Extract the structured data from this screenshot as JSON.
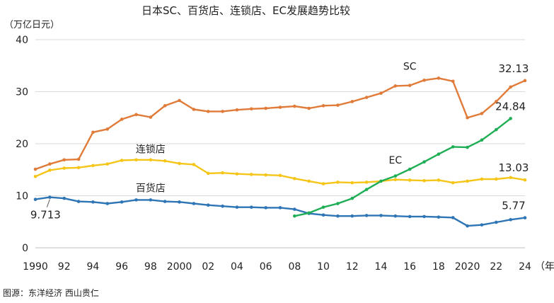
{
  "chart_data": {
    "type": "line",
    "title": "日本SC、百货店、连锁店、EC发展趋势比较",
    "ylabel": "（万亿日元）",
    "xlabel_unit": "（年）",
    "source": "图源：东洋经济  西山贵仁",
    "ylim": [
      0,
      40
    ],
    "yticks": [
      0,
      10,
      20,
      30,
      40
    ],
    "xlim": [
      1990,
      2024
    ],
    "xticks": [
      {
        "value": 1990,
        "label": "1990"
      },
      {
        "value": 1992,
        "label": "92"
      },
      {
        "value": 1994,
        "label": "94"
      },
      {
        "value": 1996,
        "label": "96"
      },
      {
        "value": 1998,
        "label": "98"
      },
      {
        "value": 2000,
        "label": "2000"
      },
      {
        "value": 2002,
        "label": "02"
      },
      {
        "value": 2004,
        "label": "04"
      },
      {
        "value": 2006,
        "label": "06"
      },
      {
        "value": 2008,
        "label": "08"
      },
      {
        "value": 2010,
        "label": "10"
      },
      {
        "value": 2012,
        "label": "12"
      },
      {
        "value": 2014,
        "label": "14"
      },
      {
        "value": 2016,
        "label": "16"
      },
      {
        "value": 2018,
        "label": "18"
      },
      {
        "value": 2020,
        "label": "2020"
      },
      {
        "value": 2022,
        "label": "22"
      },
      {
        "value": 2024,
        "label": "24"
      }
    ],
    "series": [
      {
        "name": "SC",
        "color": "#e07b39",
        "x": [
          1990,
          1991,
          1992,
          1993,
          1994,
          1995,
          1996,
          1997,
          1998,
          1999,
          2000,
          2001,
          2002,
          2003,
          2004,
          2005,
          2006,
          2007,
          2008,
          2009,
          2010,
          2011,
          2012,
          2013,
          2014,
          2015,
          2016,
          2017,
          2018,
          2019,
          2020,
          2021,
          2022,
          2023,
          2024
        ],
        "values": [
          15.1,
          16.1,
          16.9,
          17.0,
          22.2,
          22.8,
          24.7,
          25.6,
          25.1,
          27.3,
          28.3,
          26.6,
          26.2,
          26.2,
          26.5,
          26.7,
          26.8,
          27.0,
          27.2,
          26.8,
          27.3,
          27.4,
          28.1,
          28.9,
          29.7,
          31.1,
          31.2,
          32.2,
          32.6,
          32.0,
          25.0,
          25.8,
          28.1,
          30.9,
          32.13
        ],
        "label_last": "32.13"
      },
      {
        "name": "连锁店",
        "color": "#f5c518",
        "x": [
          1990,
          1991,
          1992,
          1993,
          1994,
          1995,
          1996,
          1997,
          1998,
          1999,
          2000,
          2001,
          2002,
          2003,
          2004,
          2005,
          2006,
          2007,
          2008,
          2009,
          2010,
          2011,
          2012,
          2013,
          2014,
          2015,
          2016,
          2017,
          2018,
          2019,
          2020,
          2021,
          2022,
          2023,
          2024
        ],
        "values": [
          13.7,
          14.9,
          15.3,
          15.4,
          15.8,
          16.1,
          16.8,
          16.9,
          16.9,
          16.7,
          16.2,
          16.0,
          14.3,
          14.4,
          14.2,
          14.1,
          14.0,
          13.9,
          13.3,
          12.8,
          12.3,
          12.6,
          12.5,
          12.6,
          12.8,
          13.1,
          13.0,
          12.9,
          13.0,
          12.5,
          12.8,
          13.2,
          13.2,
          13.5,
          13.03
        ],
        "label_last": "13.03"
      },
      {
        "name": "百货店",
        "color": "#2e75b6",
        "x": [
          1990,
          1991,
          1992,
          1993,
          1994,
          1995,
          1996,
          1997,
          1998,
          1999,
          2000,
          2001,
          2002,
          2003,
          2004,
          2005,
          2006,
          2007,
          2008,
          2009,
          2010,
          2011,
          2012,
          2013,
          2014,
          2015,
          2016,
          2017,
          2018,
          2019,
          2020,
          2021,
          2022,
          2023,
          2024
        ],
        "values": [
          9.3,
          9.713,
          9.5,
          8.9,
          8.8,
          8.5,
          8.8,
          9.2,
          9.2,
          8.9,
          8.8,
          8.5,
          8.2,
          8.0,
          7.8,
          7.8,
          7.7,
          7.7,
          7.4,
          6.6,
          6.3,
          6.1,
          6.1,
          6.2,
          6.2,
          6.1,
          6.0,
          6.0,
          5.9,
          5.8,
          4.2,
          4.4,
          4.9,
          5.4,
          5.77
        ],
        "label_first": "9.713",
        "label_last": "5.77"
      },
      {
        "name": "EC",
        "color": "#1fae55",
        "x": [
          2008,
          2009,
          2010,
          2011,
          2012,
          2013,
          2014,
          2015,
          2016,
          2017,
          2018,
          2019,
          2020,
          2021,
          2022,
          2023
        ],
        "values": [
          6.1,
          6.7,
          7.8,
          8.5,
          9.5,
          11.2,
          12.8,
          13.8,
          15.1,
          16.5,
          18.0,
          19.4,
          19.3,
          20.7,
          22.7,
          24.84
        ],
        "label_last": "24.84"
      }
    ]
  }
}
